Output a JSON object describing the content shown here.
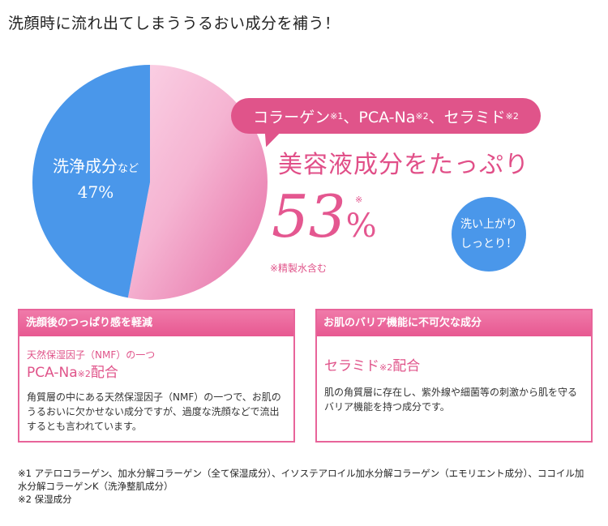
{
  "headline": "洗顔時に流れ出てしまううるおい成分を補う！",
  "pie": {
    "left_line1": "洗浄成分",
    "left_line1_small": "など",
    "left_line2": "47%",
    "colors": {
      "blue": "#4a97ea",
      "pink": "#ec8fbb"
    }
  },
  "chart_data": {
    "type": "pie",
    "slices": [
      {
        "label": "洗浄成分など",
        "value": 47
      },
      {
        "label": "美容液成分",
        "value": 53
      }
    ]
  },
  "bubble": {
    "t1": "コラーゲン",
    "s1": "※1",
    "t2": "、PCA-Na",
    "s2": "※2",
    "t3": "、セラミド",
    "s3": "※2"
  },
  "big_title": "美容液成分をたっぷり",
  "percent": {
    "num": "53",
    "unit": "%",
    "mark": "※"
  },
  "note_water": "※精製水含む",
  "wash_circle": {
    "line1": "洗い上がり",
    "line2": "しっとり！"
  },
  "box_left": {
    "header": "洗顔後のつっぱり感を軽減",
    "sub": "天然保湿因子（NMF）の一つ",
    "name": "PCA-Na",
    "name_small": "※2",
    "name_suffix": "配合",
    "desc": "角質層の中にある天然保湿因子（NMF）の一つで、お肌のうるおいに欠かせない成分ですが、過度な洗顔などで流出するとも言われています。"
  },
  "box_right": {
    "header": "お肌のバリア機能に不可欠な成分",
    "name": "セラミド",
    "name_small": "※2",
    "name_suffix": "配合",
    "desc": "肌の角質層に存在し、紫外線や細菌等の刺激から肌を守るバリア機能を持つ成分です。"
  },
  "footnotes": {
    "n1": "※1 アテロコラーゲン、加水分解コラーゲン（全て保湿成分）、イソステアロイル加水分解コラーゲン（エモリエント成分）、ココイル加水分解コラーゲンK（洗浄整肌成分）",
    "n2": "※2 保湿成分"
  }
}
